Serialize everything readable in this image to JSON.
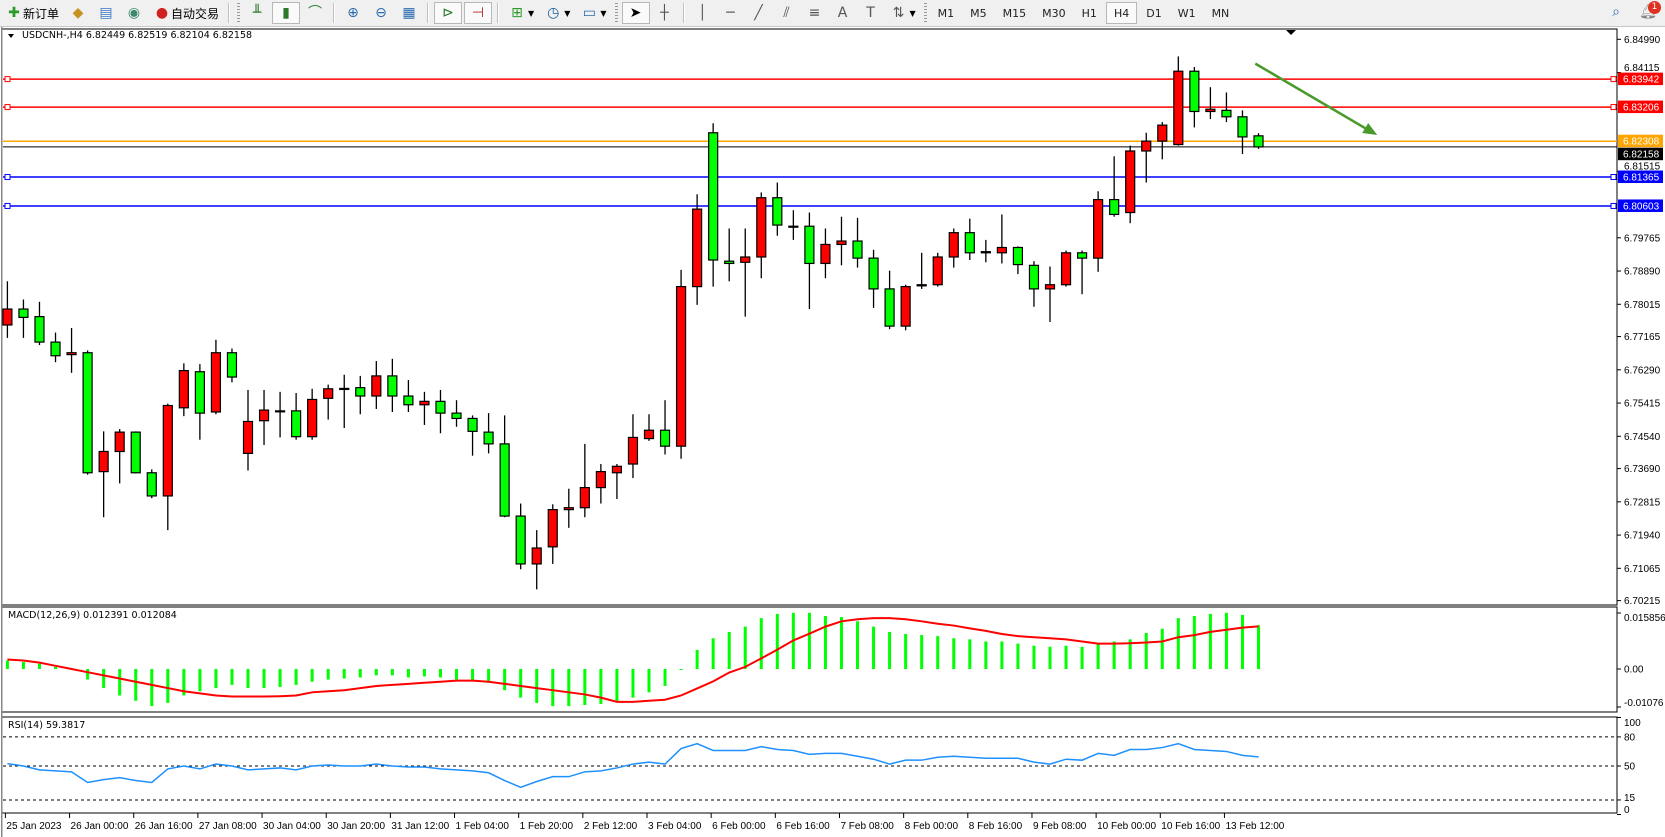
{
  "toolbar": {
    "new_order": "新订单",
    "auto_trading": "自动交易",
    "timeframes": [
      "M1",
      "M5",
      "M15",
      "M30",
      "H1",
      "H4",
      "D1",
      "W1",
      "MN"
    ],
    "active_timeframe": "H4",
    "notification_count": "1"
  },
  "chart": {
    "header": "USDCNH-,H4  6.82449 6.82519 6.82104 6.82158",
    "macd_header": "MACD(12,26,9) 0.012391 0.012084",
    "rsi_header": "RSI(14) 59.3817"
  },
  "chart_data": {
    "type": "candlestick",
    "symbol": "USDCNH-",
    "timeframe": "H4",
    "up_color": "#ff0000",
    "down_color": "#00ff00",
    "ylim": [
      6.70215,
      6.8499
    ],
    "y_ticks": [
      "6.84990",
      "6.84115",
      "6.81515",
      "6.79765",
      "6.78890",
      "6.78015",
      "6.77165",
      "6.76290",
      "6.75415",
      "6.74540",
      "6.73690",
      "6.72815",
      "6.71940",
      "6.71065",
      "6.70215"
    ],
    "x_tick_labels": [
      "25 Jan 2023",
      "26 Jan 00:00",
      "26 Jan 16:00",
      "27 Jan 08:00",
      "30 Jan 04:00",
      "30 Jan 20:00",
      "31 Jan 12:00",
      "1 Feb 04:00",
      "1 Feb 20:00",
      "2 Feb 12:00",
      "3 Feb 04:00",
      "6 Feb 00:00",
      "6 Feb 16:00",
      "7 Feb 08:00",
      "8 Feb 00:00",
      "8 Feb 16:00",
      "9 Feb 08:00",
      "10 Feb 00:00",
      "10 Feb 16:00",
      "13 Feb 12:00"
    ],
    "ohlc": [
      [
        6.7747,
        6.7862,
        6.7713,
        6.7789
      ],
      [
        6.7789,
        6.7814,
        6.7713,
        6.7767
      ],
      [
        6.7769,
        6.7808,
        6.7694,
        6.7702
      ],
      [
        6.7702,
        6.7727,
        6.7649,
        6.7666
      ],
      [
        6.7669,
        6.7739,
        6.7621,
        6.7674
      ],
      [
        6.7674,
        6.768,
        6.7353,
        6.7358
      ],
      [
        6.7361,
        6.7467,
        6.7241,
        6.7414
      ],
      [
        6.7414,
        6.7473,
        6.733,
        6.7465
      ],
      [
        6.7465,
        6.7467,
        6.7356,
        6.7358
      ],
      [
        6.7358,
        6.7367,
        6.7291,
        6.7297
      ],
      [
        6.7297,
        6.754,
        6.7207,
        6.7535
      ],
      [
        6.7529,
        6.7646,
        6.7507,
        6.7627
      ],
      [
        6.7624,
        6.7644,
        6.7445,
        6.7515
      ],
      [
        6.7518,
        6.7708,
        6.7512,
        6.7674
      ],
      [
        6.7674,
        6.7685,
        6.7596,
        6.761
      ],
      [
        6.7409,
        6.7576,
        6.7364,
        6.7493
      ],
      [
        6.7495,
        6.7576,
        6.7431,
        6.7523
      ],
      [
        6.7521,
        6.7571,
        6.7451,
        6.752
      ],
      [
        6.7521,
        6.7568,
        6.7445,
        6.7453
      ],
      [
        6.7453,
        6.7579,
        6.7445,
        6.7551
      ],
      [
        6.7554,
        6.759,
        6.7498,
        6.7579
      ],
      [
        6.7579,
        6.7616,
        6.7476,
        6.758
      ],
      [
        6.7582,
        6.7613,
        6.7512,
        6.756
      ],
      [
        6.756,
        6.7652,
        6.7526,
        6.7613
      ],
      [
        6.7613,
        6.7658,
        6.7518,
        6.756
      ],
      [
        6.756,
        6.7602,
        6.7518,
        6.7537
      ],
      [
        6.7537,
        6.7571,
        6.7484,
        6.7546
      ],
      [
        6.7546,
        6.7576,
        6.7462,
        6.7515
      ],
      [
        6.7515,
        6.7549,
        6.7479,
        6.7501
      ],
      [
        6.7501,
        6.7509,
        6.7403,
        6.7467
      ],
      [
        6.7465,
        6.7515,
        6.7409,
        6.7434
      ],
      [
        6.7434,
        6.7509,
        6.7241,
        6.7244
      ],
      [
        6.7244,
        6.7277,
        6.7104,
        6.7118
      ],
      [
        6.7118,
        6.7207,
        6.7051,
        6.716
      ],
      [
        6.7163,
        6.7275,
        6.7118,
        6.7261
      ],
      [
        6.7261,
        6.7316,
        6.7213,
        6.7266
      ],
      [
        6.7266,
        6.7434,
        6.7241,
        6.7319
      ],
      [
        6.7319,
        6.7381,
        6.7277,
        6.7361
      ],
      [
        6.7358,
        6.7381,
        6.7289,
        6.7375
      ],
      [
        6.7381,
        6.7512,
        6.7344,
        6.7451
      ],
      [
        6.7448,
        6.7512,
        6.7442,
        6.747
      ],
      [
        6.747,
        6.7549,
        6.7406,
        6.7428
      ],
      [
        6.7428,
        6.7892,
        6.7395,
        6.7848
      ],
      [
        6.7848,
        6.8091,
        6.78,
        6.8052
      ],
      [
        6.8253,
        6.8278,
        6.7848,
        6.7918
      ],
      [
        6.7915,
        6.8001,
        6.7862,
        6.7909
      ],
      [
        6.7912,
        6.8001,
        6.7769,
        6.7926
      ],
      [
        6.7926,
        6.8096,
        6.787,
        6.8082
      ],
      [
        6.8082,
        6.8122,
        6.7982,
        6.801
      ],
      [
        6.8007,
        6.8049,
        6.7971,
        6.8007
      ],
      [
        6.8007,
        6.8043,
        6.7789,
        6.7909
      ],
      [
        6.7909,
        6.8001,
        6.787,
        6.7959
      ],
      [
        6.7959,
        6.8032,
        6.7904,
        6.7968
      ],
      [
        6.7968,
        6.8029,
        6.7898,
        6.7923
      ],
      [
        6.7923,
        6.7945,
        6.7792,
        6.7842
      ],
      [
        6.7842,
        6.789,
        6.7736,
        6.7744
      ],
      [
        6.7744,
        6.7853,
        6.7733,
        6.7848
      ],
      [
        6.785,
        6.7937,
        6.7842,
        6.7853
      ],
      [
        6.7853,
        6.7937,
        6.7848,
        6.7926
      ],
      [
        6.7926,
        6.8001,
        6.7898,
        6.799
      ],
      [
        6.799,
        6.8027,
        6.7918,
        6.7937
      ],
      [
        6.794,
        6.7971,
        6.7912,
        6.7937
      ],
      [
        6.7937,
        6.8038,
        6.7909,
        6.7951
      ],
      [
        6.7951,
        6.7954,
        6.7881,
        6.7906
      ],
      [
        6.7904,
        6.7915,
        6.7795,
        6.7842
      ],
      [
        6.7842,
        6.7901,
        6.7755,
        6.7853
      ],
      [
        6.7853,
        6.7943,
        6.7848,
        6.7937
      ],
      [
        6.7937,
        6.7943,
        6.7828,
        6.7923
      ],
      [
        6.7923,
        6.8099,
        6.7887,
        6.8077
      ],
      [
        6.8077,
        6.8191,
        6.8032,
        6.8038
      ],
      [
        6.8043,
        6.8219,
        6.8015,
        6.8205
      ],
      [
        6.8205,
        6.8253,
        6.8122,
        6.8231
      ],
      [
        6.8231,
        6.8281,
        6.8183,
        6.8273
      ],
      [
        6.8222,
        6.8454,
        6.8219,
        6.8415
      ],
      [
        6.8415,
        6.8426,
        6.8267,
        6.8309
      ],
      [
        6.8309,
        6.8373,
        6.8289,
        6.8315
      ],
      [
        6.8312,
        6.8359,
        6.8281,
        6.8295
      ],
      [
        6.8295,
        6.8312,
        6.8197,
        6.8242
      ],
      [
        6.82449,
        6.82519,
        6.82104,
        6.82158
      ]
    ],
    "levels": [
      {
        "price": "6.83942",
        "color": "#ff0000"
      },
      {
        "price": "6.83206",
        "color": "#ff0000"
      },
      {
        "price": "6.82308",
        "color": "#ffa500"
      },
      {
        "price": "6.81365",
        "color": "#0000ff"
      },
      {
        "price": "6.80603",
        "color": "#0000ff"
      }
    ],
    "current_price": "6.82158",
    "arrow_color": "#4a9a2a",
    "macd": {
      "ylim": [
        -0.01076,
        0.015856
      ],
      "y_ticks": [
        "0.015856",
        "0.00",
        "-0.01076"
      ],
      "histogram_color": "#00ff00",
      "signal_color": "#ff0000",
      "histogram": [
        0.0024,
        0.002,
        0.0015,
        0.0006,
        0,
        -0.003,
        -0.0054,
        -0.0075,
        -0.009,
        -0.0105,
        -0.0096,
        -0.0075,
        -0.0063,
        -0.0054,
        -0.0045,
        -0.0054,
        -0.0054,
        -0.0051,
        -0.0045,
        -0.0036,
        -0.003,
        -0.0027,
        -0.0024,
        -0.0018,
        -0.0018,
        -0.0024,
        -0.0021,
        -0.0024,
        -0.003,
        -0.0033,
        -0.0039,
        -0.006,
        -0.0081,
        -0.0096,
        -0.0105,
        -0.0105,
        -0.0102,
        -0.0099,
        -0.0093,
        -0.0081,
        -0.0066,
        -0.0048,
        -0.0003,
        0.0054,
        0.0087,
        0.0105,
        0.012,
        0.0144,
        0.0156,
        0.0159,
        0.0159,
        0.015,
        0.0147,
        0.0135,
        0.012,
        0.0105,
        0.0099,
        0.0096,
        0.0093,
        0.0087,
        0.0084,
        0.0078,
        0.0078,
        0.0072,
        0.0066,
        0.0063,
        0.0066,
        0.0063,
        0.0072,
        0.0078,
        0.0084,
        0.0102,
        0.0114,
        0.0144,
        0.015,
        0.0156,
        0.0159,
        0.0153,
        0.012391
      ],
      "signal": [
        0.0027,
        0.0024,
        0.0018,
        0.0009,
        0,
        -0.0009,
        -0.0018,
        -0.0027,
        -0.0036,
        -0.0045,
        -0.0054,
        -0.0063,
        -0.0069,
        -0.0075,
        -0.0078,
        -0.0078,
        -0.0078,
        -0.0077,
        -0.0075,
        -0.0066,
        -0.0063,
        -0.006,
        -0.0054,
        -0.0048,
        -0.0045,
        -0.0042,
        -0.0039,
        -0.0036,
        -0.0033,
        -0.0033,
        -0.0036,
        -0.0042,
        -0.0048,
        -0.0054,
        -0.006,
        -0.0066,
        -0.0072,
        -0.0081,
        -0.0093,
        -0.0093,
        -0.009,
        -0.0087,
        -0.0075,
        -0.0055,
        -0.0035,
        -0.001,
        0.0006,
        0.003,
        0.0055,
        0.0081,
        0.01,
        0.012,
        0.0135,
        0.0141,
        0.0144,
        0.0144,
        0.0141,
        0.0135,
        0.0128,
        0.0123,
        0.0115,
        0.0108,
        0.0099,
        0.0093,
        0.009,
        0.0087,
        0.0084,
        0.0078,
        0.0072,
        0.0072,
        0.0073,
        0.0075,
        0.0078,
        0.009,
        0.0096,
        0.0105,
        0.0111,
        0.0117,
        0.012084
      ]
    },
    "rsi": {
      "ylim": [
        0,
        100
      ],
      "y_ticks": [
        "100",
        "80",
        "50",
        "15",
        "0"
      ],
      "levels": [
        80,
        50,
        15
      ],
      "color": "#1e90ff",
      "values": [
        52.5,
        50,
        46,
        45,
        44,
        33,
        36,
        38,
        35,
        33,
        47,
        50,
        47,
        52,
        50,
        46,
        47,
        48,
        46,
        50,
        51,
        50,
        50,
        52,
        50,
        49,
        49,
        47,
        46,
        45,
        43,
        35,
        28,
        34,
        39,
        39,
        44,
        45,
        48,
        52,
        54,
        52,
        68,
        73,
        66,
        66,
        66,
        70,
        67,
        66,
        62,
        63,
        63,
        60,
        57,
        52,
        56,
        56,
        59,
        60,
        59,
        58,
        58,
        58,
        54,
        52,
        57,
        56,
        63,
        61,
        67,
        67,
        69,
        73,
        67,
        66,
        65,
        61,
        59.3817
      ]
    }
  }
}
